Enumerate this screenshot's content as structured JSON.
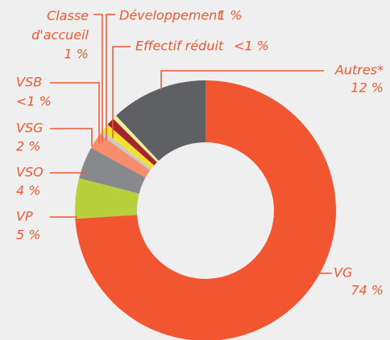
{
  "chart_data": {
    "type": "donut",
    "categories": [
      "VG",
      "VP",
      "VSO",
      "VSG",
      "VSB",
      "Classe d'accueil",
      "Développement",
      "Effectif réduit",
      "Autres*"
    ],
    "values": [
      74,
      5,
      4,
      2,
      0.5,
      1,
      1,
      0.5,
      12
    ],
    "value_labels": [
      "74 %",
      "5 %",
      "4 %",
      "2 %",
      "<1 %",
      "1 %",
      "1 %",
      "<1 %",
      "12 %"
    ],
    "colors": [
      "#f15631",
      "#b8d03c",
      "#87898c",
      "#f58d6e",
      "#c9c9c9",
      "#f3e030",
      "#a4262b",
      "#f6ef9c",
      "#5e6064"
    ]
  }
}
